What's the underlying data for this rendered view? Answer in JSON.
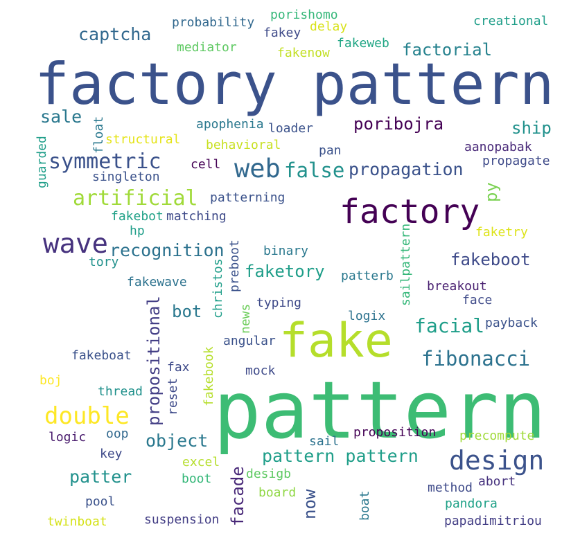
{
  "words": [
    {
      "text": "factory pattern",
      "color": "#3b528b"
    },
    {
      "text": "pattern",
      "color": "#3dbc74"
    },
    {
      "text": "fake",
      "color": "#b5de2b"
    },
    {
      "text": "factory",
      "color": "#440154"
    },
    {
      "text": "design",
      "color": "#3b528b"
    },
    {
      "text": "wave",
      "color": "#46327e"
    },
    {
      "text": "web",
      "color": "#31688e"
    },
    {
      "text": "false",
      "color": "#21918c"
    },
    {
      "text": "propagation",
      "color": "#3b528b"
    },
    {
      "text": "symmetric",
      "color": "#3b528b"
    },
    {
      "text": "artificial",
      "color": "#a0da39"
    },
    {
      "text": "double",
      "color": "#fde725"
    },
    {
      "text": "captcha",
      "color": "#31688e"
    },
    {
      "text": "factorial",
      "color": "#26828e"
    },
    {
      "text": "poribojra",
      "color": "#440154"
    },
    {
      "text": "ship",
      "color": "#21918c"
    },
    {
      "text": "sale",
      "color": "#2a788e"
    },
    {
      "text": "recognition",
      "color": "#2c728e"
    },
    {
      "text": "faketory",
      "color": "#1f9e89"
    },
    {
      "text": "fakeboot",
      "color": "#3e4a89"
    },
    {
      "text": "facial",
      "color": "#1f9e89"
    },
    {
      "text": "fibonacci",
      "color": "#2c728e"
    },
    {
      "text": "bot",
      "color": "#2a788e"
    },
    {
      "text": "object",
      "color": "#2a788e"
    },
    {
      "text": "pattern pattern",
      "color": "#1f9e89"
    },
    {
      "text": "patter",
      "color": "#21918c"
    },
    {
      "text": "py",
      "color": "#7ad151"
    },
    {
      "text": "propositional",
      "color": "#433e85"
    },
    {
      "text": "facade",
      "color": "#482878"
    },
    {
      "text": "now",
      "color": "#3b528b"
    },
    {
      "text": "probability",
      "color": "#31688e"
    },
    {
      "text": "porishomo",
      "color": "#35b779"
    },
    {
      "text": "fakey",
      "color": "#3e4a89"
    },
    {
      "text": "delay",
      "color": "#d8e219"
    },
    {
      "text": "creational",
      "color": "#1f9e89"
    },
    {
      "text": "mediator",
      "color": "#5ec962"
    },
    {
      "text": "fakenow",
      "color": "#c2df23"
    },
    {
      "text": "fakeweb",
      "color": "#21a685"
    },
    {
      "text": "apophenia",
      "color": "#2a788e"
    },
    {
      "text": "loader",
      "color": "#3b528b"
    },
    {
      "text": "structural",
      "color": "#e5e419"
    },
    {
      "text": "behavioral",
      "color": "#c8e020"
    },
    {
      "text": "pan",
      "color": "#3b528b"
    },
    {
      "text": "aanopabak",
      "color": "#482878"
    },
    {
      "text": "propagate",
      "color": "#3e4a89"
    },
    {
      "text": "cell",
      "color": "#440154"
    },
    {
      "text": "singleton",
      "color": "#3b528b"
    },
    {
      "text": "patterning",
      "color": "#3b528b"
    },
    {
      "text": "fakebot",
      "color": "#1fa187"
    },
    {
      "text": "matching",
      "color": "#3e4a89"
    },
    {
      "text": "hp",
      "color": "#1f9e89"
    },
    {
      "text": "faketry",
      "color": "#dde318"
    },
    {
      "text": "tory",
      "color": "#21918c"
    },
    {
      "text": "binary",
      "color": "#2a788e"
    },
    {
      "text": "patterb",
      "color": "#2a788e"
    },
    {
      "text": "fakewave",
      "color": "#2c728e"
    },
    {
      "text": "breakout",
      "color": "#481f70"
    },
    {
      "text": "face",
      "color": "#3e4a89"
    },
    {
      "text": "typing",
      "color": "#3e4a89"
    },
    {
      "text": "logix",
      "color": "#2c728e"
    },
    {
      "text": "payback",
      "color": "#3b528b"
    },
    {
      "text": "angular",
      "color": "#3b528b"
    },
    {
      "text": "fakeboat",
      "color": "#3b528b"
    },
    {
      "text": "fax",
      "color": "#3e4a89"
    },
    {
      "text": "mock",
      "color": "#3e4a89"
    },
    {
      "text": "boj",
      "color": "#fde725"
    },
    {
      "text": "thread",
      "color": "#21918c"
    },
    {
      "text": "oop",
      "color": "#31688e"
    },
    {
      "text": "sail",
      "color": "#2c728e"
    },
    {
      "text": "proposition",
      "color": "#440154"
    },
    {
      "text": "precompute",
      "color": "#a0da39"
    },
    {
      "text": "logic",
      "color": "#481a6c"
    },
    {
      "text": "key",
      "color": "#3e4a89"
    },
    {
      "text": "excel",
      "color": "#b5de2b"
    },
    {
      "text": "boot",
      "color": "#35b779"
    },
    {
      "text": "desigb",
      "color": "#5ec962"
    },
    {
      "text": "abort",
      "color": "#46327e"
    },
    {
      "text": "method",
      "color": "#3e4a89"
    },
    {
      "text": "board",
      "color": "#8fd744"
    },
    {
      "text": "pool",
      "color": "#3b528b"
    },
    {
      "text": "pandora",
      "color": "#1fa187"
    },
    {
      "text": "twinboat",
      "color": "#d5e21a"
    },
    {
      "text": "suspension",
      "color": "#433e85"
    },
    {
      "text": "papadimitriou",
      "color": "#433e85"
    },
    {
      "text": "guarded",
      "color": "#1f9e89"
    },
    {
      "text": "float",
      "color": "#2a788e"
    },
    {
      "text": "preboot",
      "color": "#3b528b"
    },
    {
      "text": "christos",
      "color": "#1f9e89"
    },
    {
      "text": "news",
      "color": "#6ccd5a"
    },
    {
      "text": "sailpattern",
      "color": "#35b779"
    },
    {
      "text": "fakebook",
      "color": "#b5de2b"
    },
    {
      "text": "reset",
      "color": "#3e4a89"
    },
    {
      "text": "boat",
      "color": "#2a788e"
    }
  ]
}
